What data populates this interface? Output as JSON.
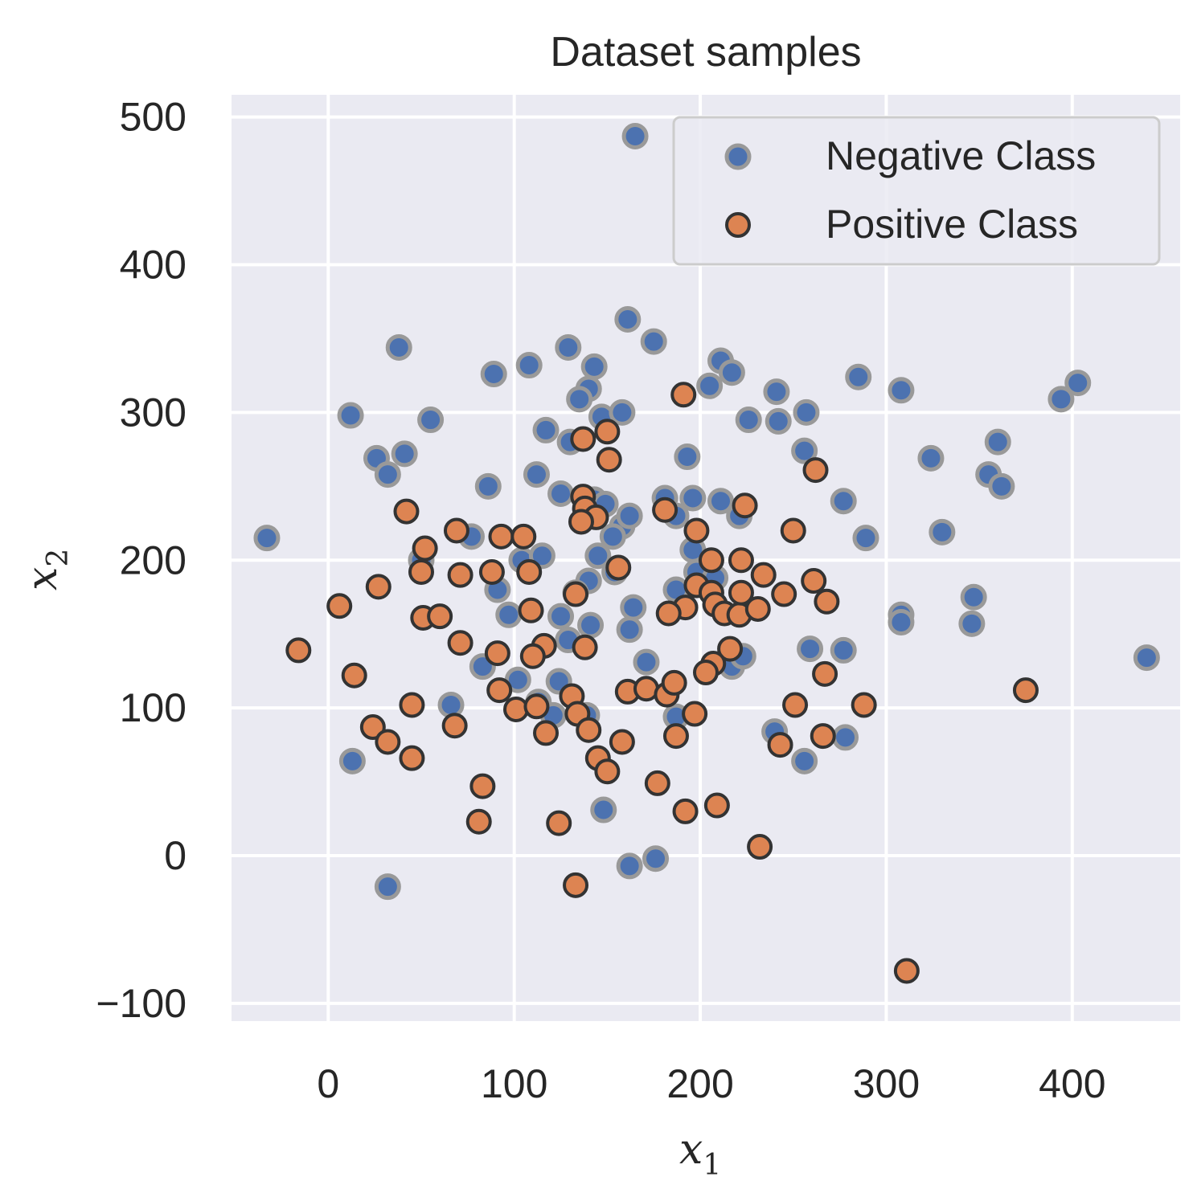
{
  "chart_data": {
    "type": "scatter",
    "title": "Dataset samples",
    "xlabel": "x",
    "xlabel_sub": "1",
    "ylabel": "x",
    "ylabel_sub": "2",
    "xlim": [
      -52,
      458
    ],
    "ylim": [
      -112,
      515
    ],
    "xticks": [
      0,
      100,
      200,
      300,
      400
    ],
    "yticks": [
      -100,
      0,
      100,
      200,
      300,
      400,
      500
    ],
    "xtick_labels": [
      "0",
      "100",
      "200",
      "300",
      "400"
    ],
    "ytick_labels": [
      "−100",
      "0",
      "100",
      "200",
      "300",
      "400",
      "500"
    ],
    "grid": true,
    "legend_position": "top-right",
    "colors": {
      "background": "#eaeaf2",
      "grid": "#ffffff",
      "negative_fill": "#4c72b0",
      "negative_edge": "#999999",
      "positive_fill": "#dd8452",
      "positive_edge": "#333333"
    },
    "series": [
      {
        "name": "Negative Class",
        "points": [
          [
            165,
            487
          ],
          [
            161,
            363
          ],
          [
            38,
            344
          ],
          [
            129,
            344
          ],
          [
            175,
            348
          ],
          [
            143,
            331
          ],
          [
            108,
            332
          ],
          [
            89,
            326
          ],
          [
            211,
            335
          ],
          [
            217,
            327
          ],
          [
            140,
            316
          ],
          [
            135,
            309
          ],
          [
            205,
            318
          ],
          [
            285,
            324
          ],
          [
            241,
            314
          ],
          [
            308,
            315
          ],
          [
            394,
            309
          ],
          [
            403,
            320
          ],
          [
            12,
            298
          ],
          [
            55,
            295
          ],
          [
            147,
            297
          ],
          [
            158,
            300
          ],
          [
            226,
            295
          ],
          [
            242,
            294
          ],
          [
            257,
            300
          ],
          [
            117,
            288
          ],
          [
            130,
            280
          ],
          [
            256,
            274
          ],
          [
            26,
            269
          ],
          [
            41,
            272
          ],
          [
            32,
            258
          ],
          [
            193,
            270
          ],
          [
            324,
            269
          ],
          [
            360,
            280
          ],
          [
            355,
            258
          ],
          [
            362,
            250
          ],
          [
            86,
            250
          ],
          [
            112,
            258
          ],
          [
            125,
            245
          ],
          [
            181,
            242
          ],
          [
            196,
            242
          ],
          [
            211,
            240
          ],
          [
            143,
            241
          ],
          [
            149,
            238
          ],
          [
            277,
            240
          ],
          [
            221,
            230
          ],
          [
            158,
            223
          ],
          [
            162,
            230
          ],
          [
            187,
            230
          ],
          [
            -33,
            215
          ],
          [
            77,
            216
          ],
          [
            153,
            216
          ],
          [
            330,
            219
          ],
          [
            289,
            215
          ],
          [
            104,
            200
          ],
          [
            115,
            203
          ],
          [
            145,
            203
          ],
          [
            196,
            207
          ],
          [
            50,
            200
          ],
          [
            198,
            192
          ],
          [
            140,
            186
          ],
          [
            91,
            180
          ],
          [
            97,
            163
          ],
          [
            125,
            162
          ],
          [
            154,
            192
          ],
          [
            187,
            180
          ],
          [
            208,
            188
          ],
          [
            133,
            178
          ],
          [
            141,
            156
          ],
          [
            162,
            153
          ],
          [
            164,
            168
          ],
          [
            308,
            163
          ],
          [
            308,
            158
          ],
          [
            347,
            175
          ],
          [
            346,
            157
          ],
          [
            129,
            146
          ],
          [
            259,
            140
          ],
          [
            277,
            139
          ],
          [
            171,
            131
          ],
          [
            217,
            128
          ],
          [
            223,
            135
          ],
          [
            83,
            128
          ],
          [
            102,
            119
          ],
          [
            124,
            118
          ],
          [
            113,
            104
          ],
          [
            121,
            95
          ],
          [
            66,
            102
          ],
          [
            139,
            95
          ],
          [
            187,
            94
          ],
          [
            240,
            84
          ],
          [
            278,
            80
          ],
          [
            13,
            64
          ],
          [
            256,
            64
          ],
          [
            148,
            31
          ],
          [
            162,
            -7
          ],
          [
            176,
            -2
          ],
          [
            32,
            -21
          ],
          [
            440,
            134
          ]
        ]
      },
      {
        "name": "Positive Class",
        "points": [
          [
            191,
            312
          ],
          [
            137,
            282
          ],
          [
            150,
            287
          ],
          [
            151,
            268
          ],
          [
            262,
            261
          ],
          [
            42,
            233
          ],
          [
            137,
            243
          ],
          [
            181,
            234
          ],
          [
            224,
            237
          ],
          [
            138,
            235
          ],
          [
            144,
            229
          ],
          [
            136,
            226
          ],
          [
            69,
            220
          ],
          [
            93,
            216
          ],
          [
            105,
            216
          ],
          [
            198,
            220
          ],
          [
            250,
            220
          ],
          [
            52,
            208
          ],
          [
            50,
            192
          ],
          [
            71,
            190
          ],
          [
            88,
            192
          ],
          [
            108,
            192
          ],
          [
            156,
            195
          ],
          [
            206,
            200
          ],
          [
            222,
            200
          ],
          [
            234,
            190
          ],
          [
            261,
            186
          ],
          [
            27,
            182
          ],
          [
            198,
            183
          ],
          [
            206,
            178
          ],
          [
            6,
            169
          ],
          [
            51,
            161
          ],
          [
            60,
            162
          ],
          [
            109,
            166
          ],
          [
            133,
            177
          ],
          [
            192,
            168
          ],
          [
            183,
            164
          ],
          [
            208,
            170
          ],
          [
            213,
            164
          ],
          [
            221,
            163
          ],
          [
            231,
            167
          ],
          [
            222,
            178
          ],
          [
            245,
            177
          ],
          [
            268,
            172
          ],
          [
            -16,
            139
          ],
          [
            14,
            122
          ],
          [
            71,
            144
          ],
          [
            91,
            137
          ],
          [
            116,
            142
          ],
          [
            110,
            135
          ],
          [
            138,
            141
          ],
          [
            216,
            140
          ],
          [
            207,
            130
          ],
          [
            203,
            124
          ],
          [
            267,
            123
          ],
          [
            92,
            112
          ],
          [
            161,
            111
          ],
          [
            171,
            113
          ],
          [
            182,
            109
          ],
          [
            186,
            117
          ],
          [
            45,
            102
          ],
          [
            101,
            99
          ],
          [
            112,
            101
          ],
          [
            117,
            83
          ],
          [
            131,
            108
          ],
          [
            134,
            96
          ],
          [
            140,
            85
          ],
          [
            197,
            96
          ],
          [
            251,
            102
          ],
          [
            288,
            102
          ],
          [
            375,
            112
          ],
          [
            24,
            87
          ],
          [
            32,
            77
          ],
          [
            68,
            88
          ],
          [
            187,
            81
          ],
          [
            243,
            75
          ],
          [
            266,
            81
          ],
          [
            45,
            66
          ],
          [
            145,
            66
          ],
          [
            150,
            57
          ],
          [
            158,
            77
          ],
          [
            83,
            47
          ],
          [
            177,
            49
          ],
          [
            192,
            30
          ],
          [
            209,
            34
          ],
          [
            81,
            23
          ],
          [
            124,
            22
          ],
          [
            232,
            6
          ],
          [
            133,
            -20
          ],
          [
            311,
            -78
          ]
        ]
      }
    ],
    "legend": {
      "negative_label": "Negative Class",
      "positive_label": "Positive Class"
    }
  }
}
